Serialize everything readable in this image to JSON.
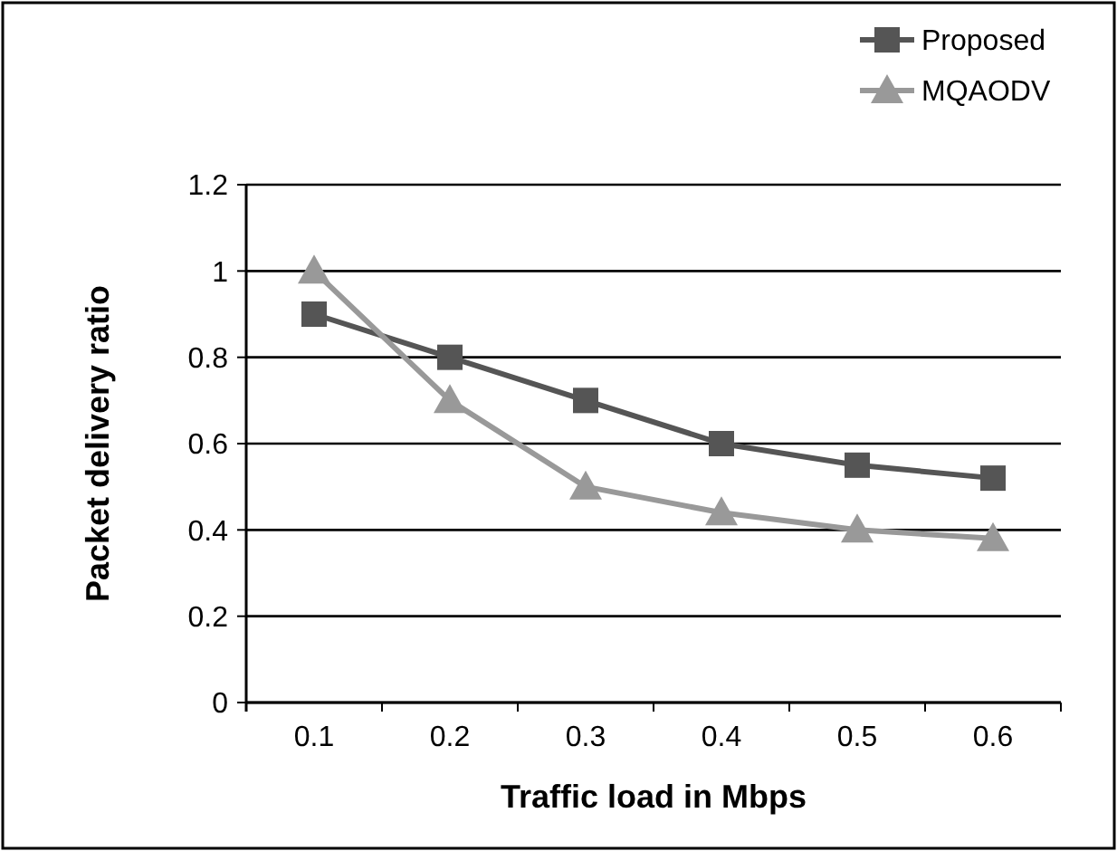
{
  "chart_data": {
    "type": "line",
    "xlabel": "Traffic load in Mbps",
    "ylabel": "Packet delivery ratio",
    "categories": [
      "0.1",
      "0.2",
      "0.3",
      "0.4",
      "0.5",
      "0.6"
    ],
    "series": [
      {
        "name": "Proposed",
        "color": "#555555",
        "marker": "square",
        "values": [
          0.9,
          0.8,
          0.7,
          0.6,
          0.55,
          0.52
        ]
      },
      {
        "name": "MQAODV",
        "color": "#999999",
        "marker": "triangle",
        "values": [
          1.0,
          0.7,
          0.5,
          0.44,
          0.4,
          0.38
        ]
      }
    ],
    "ylim": [
      0,
      1.2
    ],
    "yticks": [
      0,
      0.2,
      0.4,
      0.6,
      0.8,
      1,
      1.2
    ],
    "grid": "y",
    "legend": "top right"
  }
}
